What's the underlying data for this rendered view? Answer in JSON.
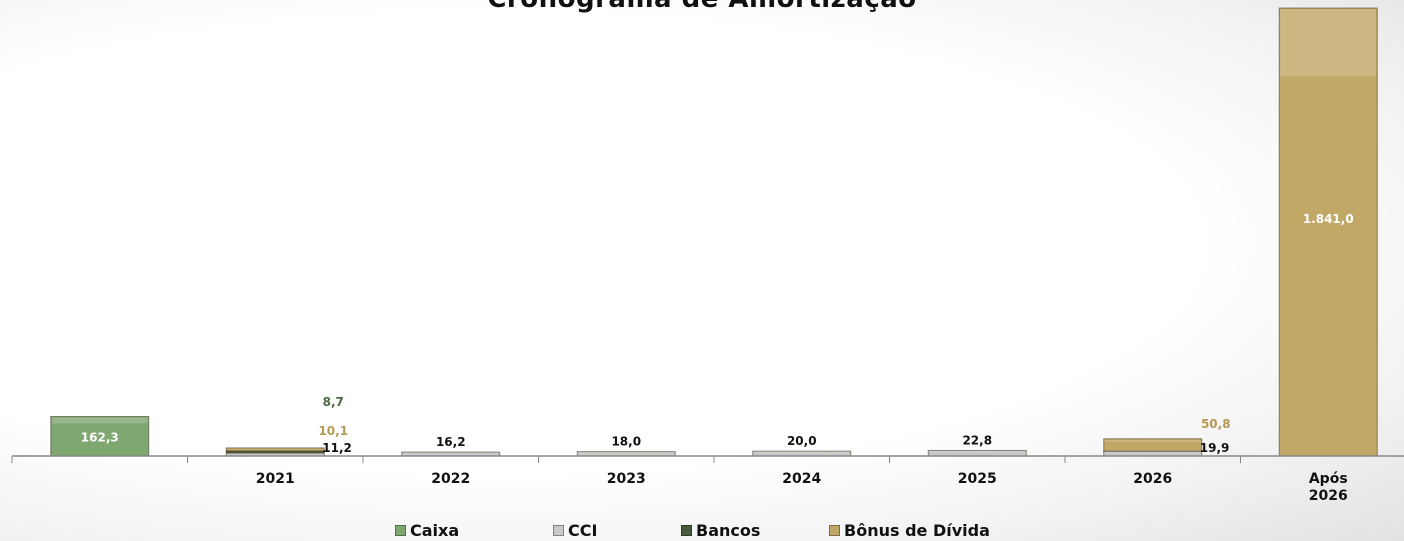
{
  "chart_data": {
    "type": "bar",
    "title": "Cronograma de Amortização",
    "categories": [
      "",
      "2021",
      "2022",
      "2023",
      "2024",
      "2025",
      "2026",
      "Após 2026"
    ],
    "series": [
      {
        "name": "Caixa",
        "color": "#7fa870",
        "values": [
          162.3,
          null,
          null,
          null,
          null,
          null,
          null,
          null
        ]
      },
      {
        "name": "CCI",
        "color": "#c8c8c8",
        "values": [
          null,
          11.2,
          16.2,
          18.0,
          20.0,
          22.8,
          19.9,
          null
        ]
      },
      {
        "name": "Bancos",
        "color": "#4a5a3e",
        "values": [
          null,
          8.7,
          null,
          null,
          null,
          null,
          null,
          null
        ]
      },
      {
        "name": "Bônus de Dívida",
        "color": "#c2a867",
        "values": [
          null,
          10.1,
          null,
          null,
          null,
          null,
          50.8,
          1841.0
        ]
      }
    ],
    "bar_labels": [
      {
        "category": 0,
        "series": "Caixa",
        "text": "162,3",
        "color": "#ffffff",
        "position": "inside"
      },
      {
        "category": 1,
        "series": "Bancos",
        "text": "8,7",
        "color": "#4a6a40",
        "position": "above-high"
      },
      {
        "category": 1,
        "series": "Bônus de Dívida",
        "text": "10,1",
        "color": "#b59a55",
        "position": "above-mid"
      },
      {
        "category": 1,
        "series": "CCI",
        "text": "11,2",
        "color": "#111111",
        "position": "right"
      },
      {
        "category": 2,
        "series": "CCI",
        "text": "16,2",
        "color": "#111111",
        "position": "above"
      },
      {
        "category": 3,
        "series": "CCI",
        "text": "18,0",
        "color": "#111111",
        "position": "above"
      },
      {
        "category": 4,
        "series": "CCI",
        "text": "20,0",
        "color": "#111111",
        "position": "above"
      },
      {
        "category": 5,
        "series": "CCI",
        "text": "22,8",
        "color": "#111111",
        "position": "above"
      },
      {
        "category": 6,
        "series": "Bônus de Dívida",
        "text": "50,8",
        "color": "#b59a55",
        "position": "above-right"
      },
      {
        "category": 6,
        "series": "CCI",
        "text": "19,9",
        "color": "#111111",
        "position": "right"
      },
      {
        "category": 7,
        "series": "Bônus de Dívida",
        "text": "1.841,0",
        "color": "#ffffff",
        "position": "inside"
      }
    ],
    "ylim": [
      0,
      1841
    ],
    "xlabel": "",
    "ylabel": "",
    "grid": false,
    "legend_placement": "bottom"
  }
}
